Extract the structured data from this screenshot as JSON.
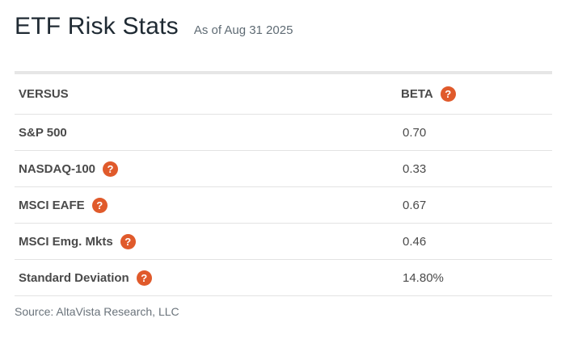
{
  "header": {
    "title": "ETF Risk Stats",
    "as_of": "As of Aug 31 2025"
  },
  "table": {
    "col_versus": "VERSUS",
    "col_beta": "BETA",
    "rows": [
      {
        "label": "S&P 500",
        "value": "0.70",
        "has_help": false
      },
      {
        "label": "NASDAQ-100",
        "value": "0.33",
        "has_help": true
      },
      {
        "label": "MSCI EAFE",
        "value": "0.67",
        "has_help": true
      },
      {
        "label": "MSCI Emg. Mkts",
        "value": "0.46",
        "has_help": true
      },
      {
        "label": "Standard Deviation",
        "value": "14.80%",
        "has_help": true
      }
    ]
  },
  "help_icon_glyph": "?",
  "source": "Source: AltaVista Research, LLC",
  "colors": {
    "help_icon": "#e05a2b",
    "title": "#1f2a33"
  }
}
